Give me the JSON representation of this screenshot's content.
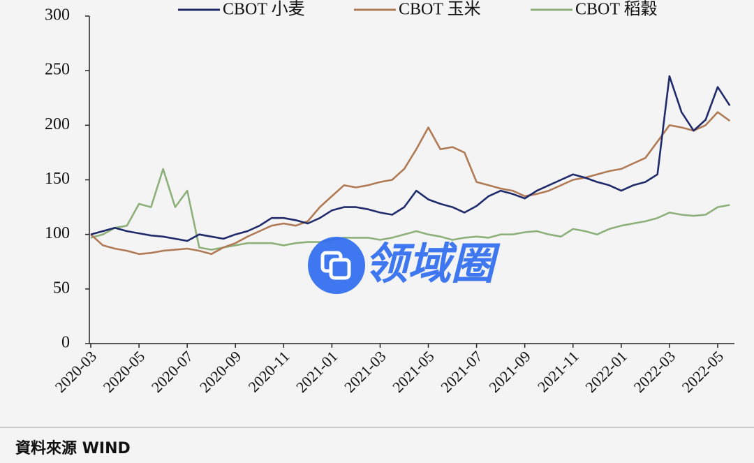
{
  "chart_data": {
    "type": "line",
    "categories": [
      "2020-03",
      null,
      null,
      null,
      "2020-05",
      null,
      null,
      null,
      "2020-07",
      null,
      null,
      null,
      "2020-09",
      null,
      null,
      null,
      "2020-11",
      null,
      null,
      null,
      "2021-01",
      null,
      null,
      null,
      "2021-03",
      null,
      null,
      null,
      "2021-05",
      null,
      null,
      null,
      "2021-07",
      null,
      null,
      null,
      "2021-09",
      null,
      null,
      null,
      "2021-11",
      null,
      null,
      null,
      "2022-01",
      null,
      null,
      null,
      "2022-03",
      null,
      null,
      null,
      "2022-05",
      null
    ],
    "series": [
      {
        "name": "CBOT 小麦",
        "color": "#1f2a6b",
        "values": [
          100,
          103,
          106,
          103,
          101,
          99,
          98,
          96,
          94,
          100,
          98,
          96,
          100,
          103,
          108,
          115,
          115,
          113,
          110,
          115,
          122,
          125,
          125,
          123,
          120,
          118,
          125,
          140,
          132,
          128,
          125,
          120,
          126,
          135,
          140,
          137,
          133,
          140,
          145,
          150,
          155,
          152,
          148,
          145,
          140,
          145,
          148,
          155,
          245,
          212,
          195,
          205,
          235,
          218
        ]
      },
      {
        "name": "CBOT 玉米",
        "color": "#b07a55",
        "values": [
          100,
          90,
          87,
          85,
          82,
          83,
          85,
          86,
          87,
          85,
          82,
          88,
          92,
          98,
          103,
          108,
          110,
          108,
          112,
          125,
          135,
          145,
          143,
          145,
          148,
          150,
          160,
          178,
          198,
          178,
          180,
          175,
          148,
          145,
          142,
          140,
          135,
          137,
          140,
          145,
          150,
          152,
          155,
          158,
          160,
          165,
          170,
          185,
          200,
          198,
          195,
          200,
          212,
          204
        ]
      },
      {
        "name": "CBOT 稻穀",
        "color": "#8db07a",
        "values": [
          97,
          100,
          106,
          108,
          128,
          125,
          160,
          125,
          140,
          88,
          86,
          88,
          90,
          92,
          92,
          92,
          90,
          92,
          93,
          93,
          95,
          97,
          97,
          97,
          95,
          97,
          100,
          103,
          100,
          98,
          95,
          97,
          98,
          97,
          100,
          100,
          102,
          103,
          100,
          98,
          105,
          103,
          100,
          105,
          108,
          110,
          112,
          115,
          120,
          118,
          117,
          118,
          125,
          127
        ]
      }
    ],
    "ylim": [
      0,
      300
    ],
    "yticks": [
      0,
      50,
      100,
      150,
      200,
      250,
      300
    ],
    "legend": "top"
  },
  "source": "資料來源 WIND",
  "watermark": "领域圈"
}
